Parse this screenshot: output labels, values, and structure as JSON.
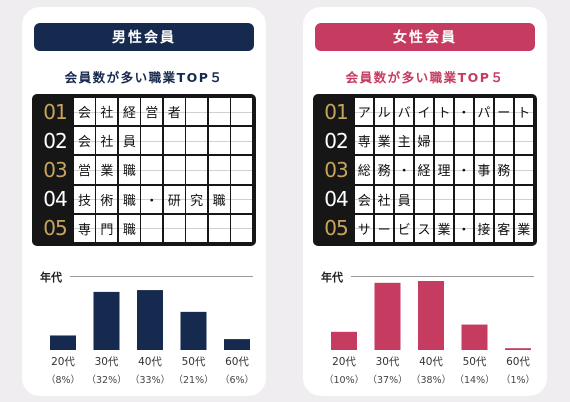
{
  "male": {
    "header": "男性会員",
    "subtitle": "会員数が多い職業TOP５",
    "rows": [
      {
        "num": "01",
        "chars": [
          "会",
          "社",
          "経",
          "営",
          "者",
          "",
          "",
          ""
        ]
      },
      {
        "num": "02",
        "chars": [
          "会",
          "社",
          "員",
          "",
          "",
          "",
          "",
          ""
        ]
      },
      {
        "num": "03",
        "chars": [
          "営",
          "業",
          "職",
          "",
          "",
          "",
          "",
          ""
        ]
      },
      {
        "num": "04",
        "chars": [
          "技",
          "術",
          "職",
          "・",
          "研",
          "究",
          "職",
          ""
        ]
      },
      {
        "num": "05",
        "chars": [
          "専",
          "門",
          "職",
          "",
          "",
          "",
          "",
          ""
        ]
      }
    ],
    "age_label": "年代",
    "chart_data": {
      "type": "bar",
      "categories": [
        "20代",
        "30代",
        "40代",
        "50代",
        "60代"
      ],
      "values": [
        8,
        32,
        33,
        21,
        6
      ],
      "value_labels": [
        "（8%）",
        "（32%）",
        "（33%）",
        "（21%）",
        "（6%）"
      ],
      "ylim": [
        0,
        38
      ],
      "color": "#16294f"
    }
  },
  "female": {
    "header": "女性会員",
    "subtitle": "会員数が多い職業TOP５",
    "rows": [
      {
        "num": "01",
        "chars": [
          "ア",
          "ル",
          "バ",
          "イ",
          "ト",
          "・",
          "パ",
          "ー",
          "ト"
        ]
      },
      {
        "num": "02",
        "chars": [
          "専",
          "業",
          "主",
          "婦",
          "",
          "",
          "",
          "",
          ""
        ]
      },
      {
        "num": "03",
        "chars": [
          "総",
          "務",
          "・",
          "経",
          "理",
          "・",
          "事",
          "務",
          ""
        ]
      },
      {
        "num": "04",
        "chars": [
          "会",
          "社",
          "員",
          "",
          "",
          "",
          "",
          "",
          ""
        ]
      },
      {
        "num": "05",
        "chars": [
          "サ",
          "ー",
          "ビ",
          "ス",
          "業",
          "・",
          "接",
          "客",
          "業"
        ]
      }
    ],
    "age_label": "年代",
    "chart_data": {
      "type": "bar",
      "categories": [
        "20代",
        "30代",
        "40代",
        "50代",
        "60代"
      ],
      "values": [
        10,
        37,
        38,
        14,
        1
      ],
      "value_labels": [
        "（10%）",
        "（37%）",
        "（38%）",
        "（14%）",
        "（1%）"
      ],
      "ylim": [
        0,
        38
      ],
      "color": "#c63c60"
    }
  }
}
